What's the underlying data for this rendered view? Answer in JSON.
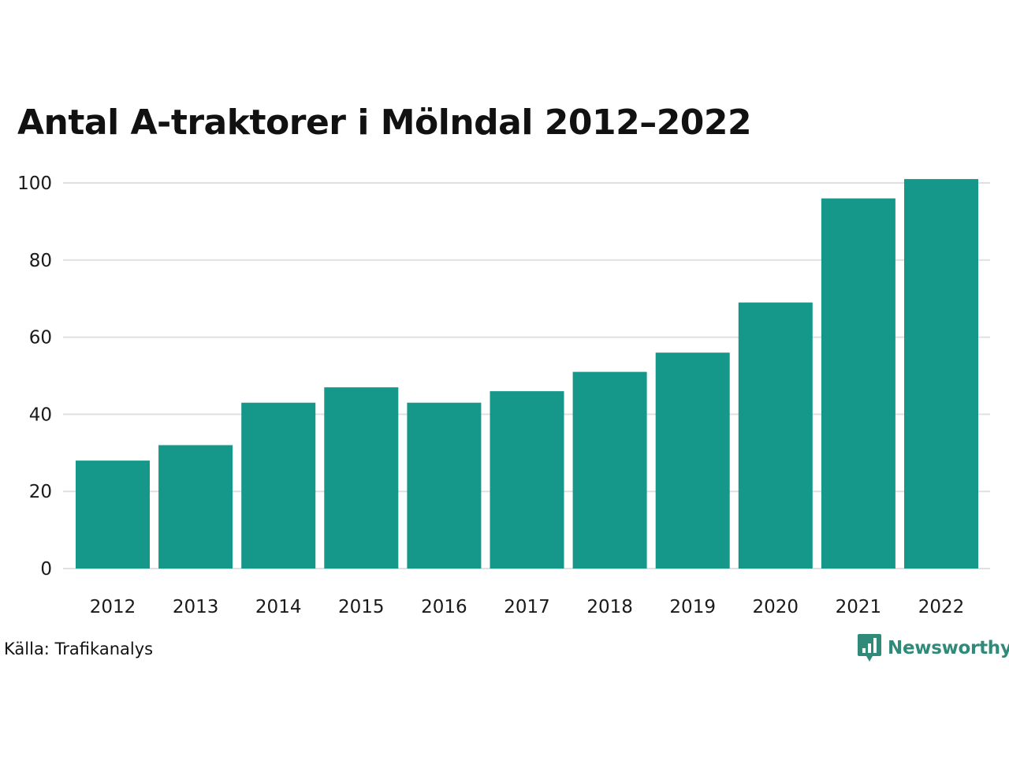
{
  "chart_data": {
    "type": "bar",
    "title": "Antal A-traktorer i Mölndal 2012–2022",
    "xlabel": "",
    "ylabel": "",
    "categories": [
      "2012",
      "2013",
      "2014",
      "2015",
      "2016",
      "2017",
      "2018",
      "2019",
      "2020",
      "2021",
      "2022"
    ],
    "values": [
      28,
      32,
      43,
      47,
      43,
      46,
      51,
      56,
      69,
      96,
      101
    ],
    "ylim": [
      0,
      100
    ],
    "yticks": [
      "0",
      "20",
      "40",
      "60",
      "80",
      "100"
    ],
    "grid": true,
    "legend": "none",
    "bar_color": "#159789",
    "grid_color": "#e0e0e0"
  },
  "source": "Källa: Trafikanalys",
  "brand": {
    "name": "Newsworthy",
    "icon": "newsworthy-logo-icon",
    "color": "#2f8a79"
  }
}
